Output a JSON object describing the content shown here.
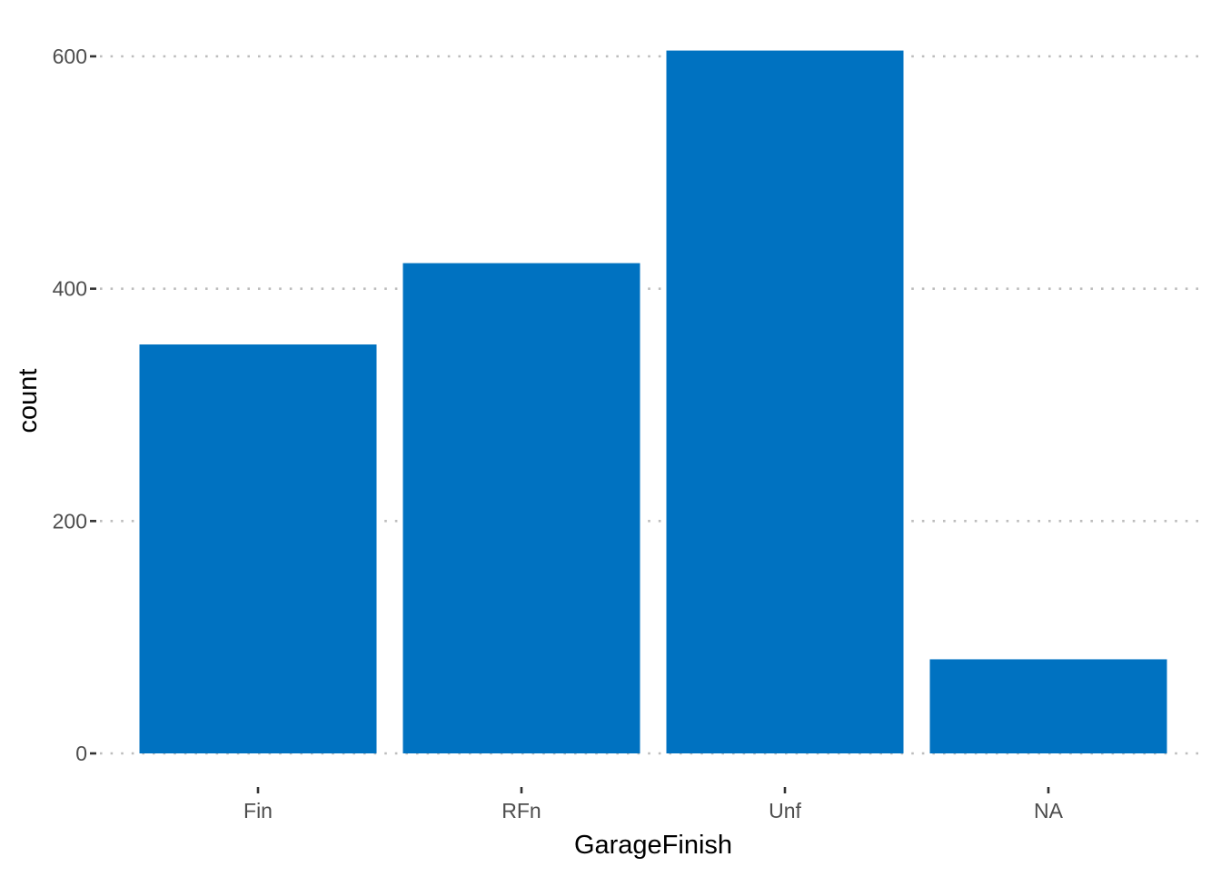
{
  "chart_data": {
    "type": "bar",
    "title": "",
    "xlabel": "GarageFinish",
    "ylabel": "count",
    "categories": [
      "Fin",
      "RFn",
      "Unf",
      "NA"
    ],
    "values": [
      352,
      422,
      605,
      81
    ],
    "ylim": [
      0,
      630
    ],
    "yticks": [
      0,
      200,
      400,
      600
    ],
    "grid": "horizontal dotted",
    "legend": "none",
    "bar_color": "#0072C1",
    "grid_color": "#BDBDBD"
  }
}
